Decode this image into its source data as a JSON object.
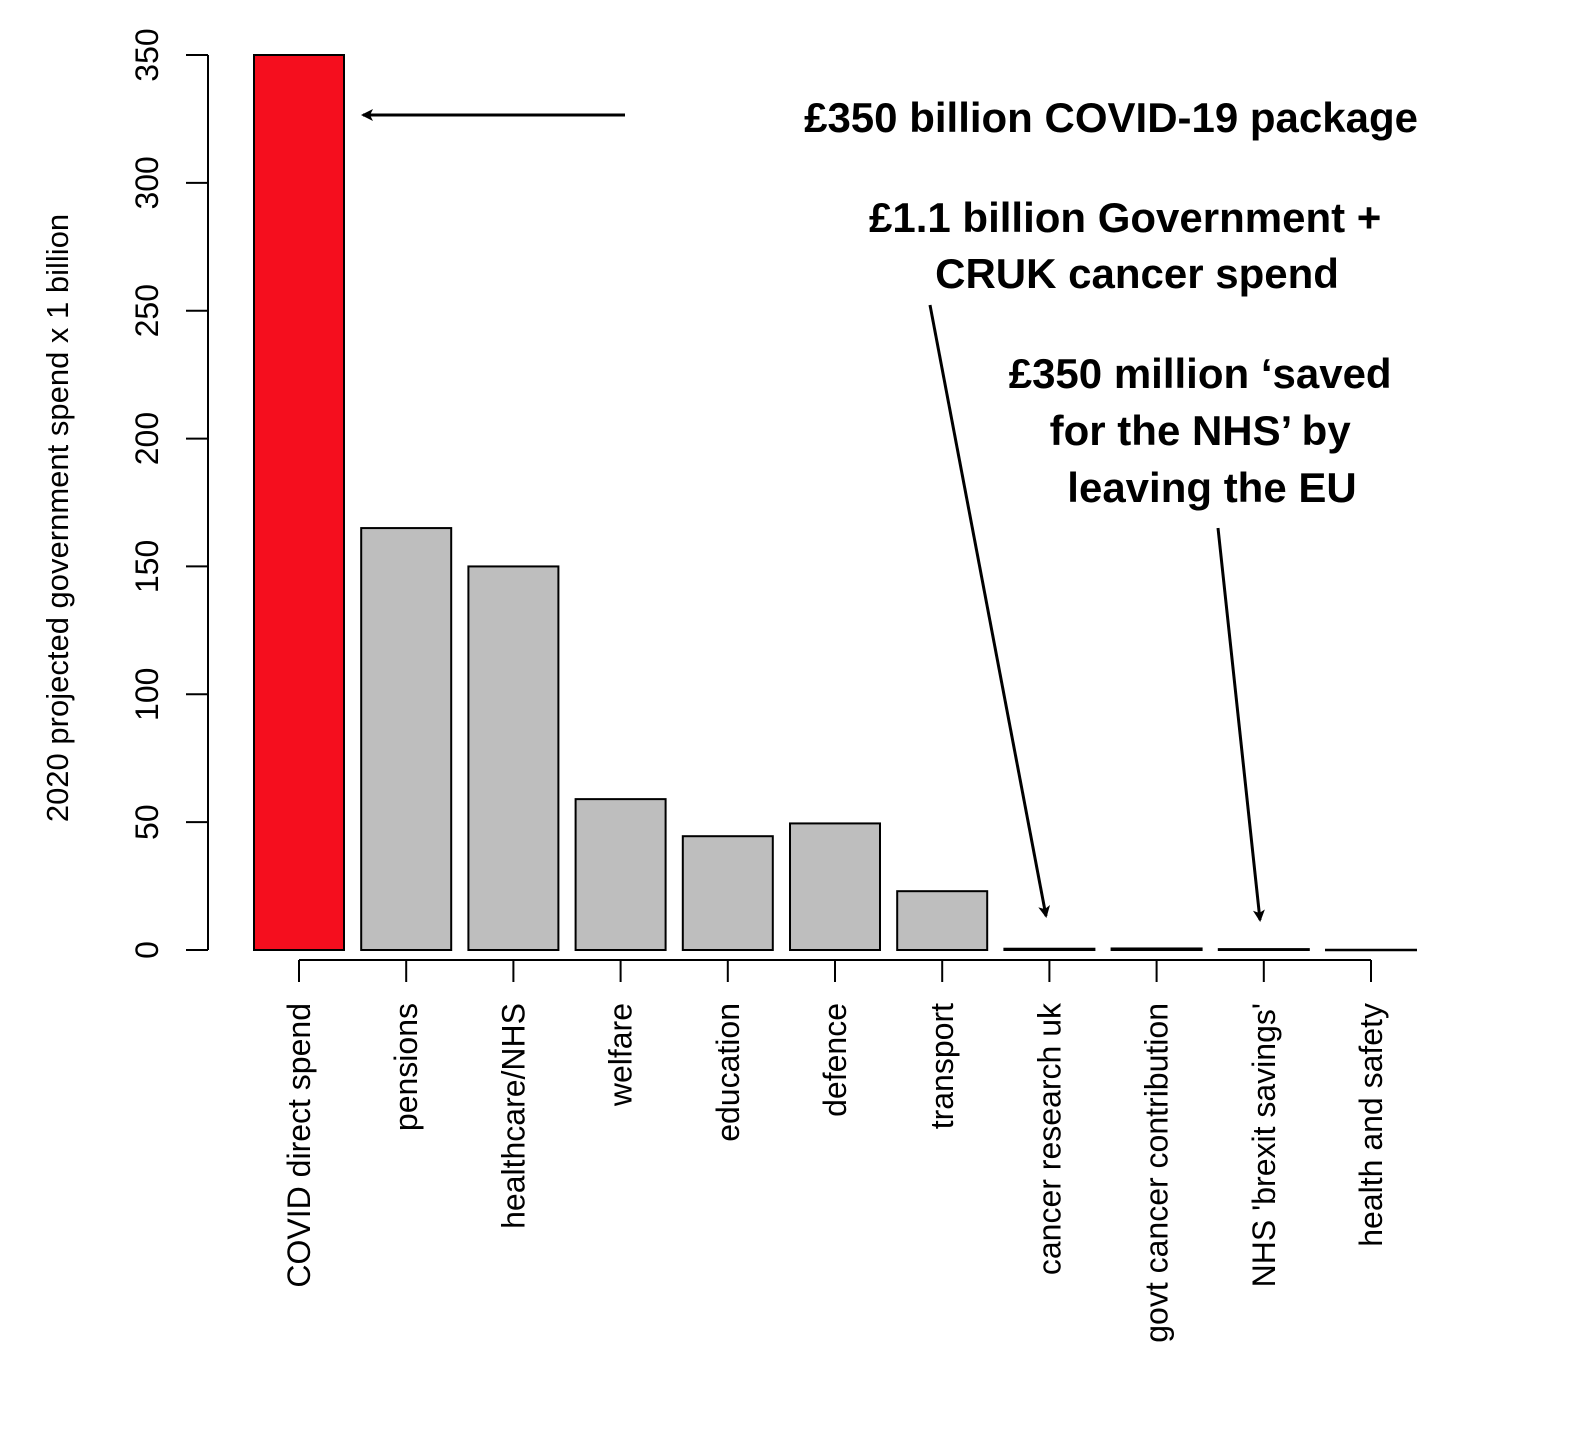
{
  "chart_data": {
    "type": "bar",
    "title": "",
    "xlabel": "",
    "ylabel": "2020 projected government spend x 1 billion",
    "ylim": [
      0,
      350
    ],
    "yticks": [
      0,
      50,
      100,
      150,
      200,
      250,
      300,
      350
    ],
    "categories": [
      "COVID direct spend",
      "pensions",
      "healthcare/NHS",
      "welfare",
      "education",
      "defence",
      "transport",
      "cancer research uk",
      "govt cancer contribution",
      "NHS 'brexit savings'",
      "health and safety"
    ],
    "values": [
      350,
      165,
      150,
      59,
      44.5,
      49.5,
      23,
      0.5,
      0.6,
      0.35,
      0.1
    ],
    "bar_colors": [
      "#f50e1e",
      "#bebebe",
      "#bebebe",
      "#bebebe",
      "#bebebe",
      "#bebebe",
      "#bebebe",
      "#bebebe",
      "#bebebe",
      "#bebebe",
      "#bebebe"
    ],
    "grid": false,
    "annotations": [
      {
        "lines": [
          "£350 billion COVID-19 package"
        ],
        "points_to": "COVID direct spend"
      },
      {
        "lines": [
          "£1.1 billion Government +",
          "CRUK cancer spend"
        ],
        "points_to": "cancer research uk"
      },
      {
        "lines": [
          "£350 million ‘saved",
          "for the NHS’ by",
          "leaving the EU"
        ],
        "points_to": "NHS 'brexit savings'"
      }
    ]
  }
}
